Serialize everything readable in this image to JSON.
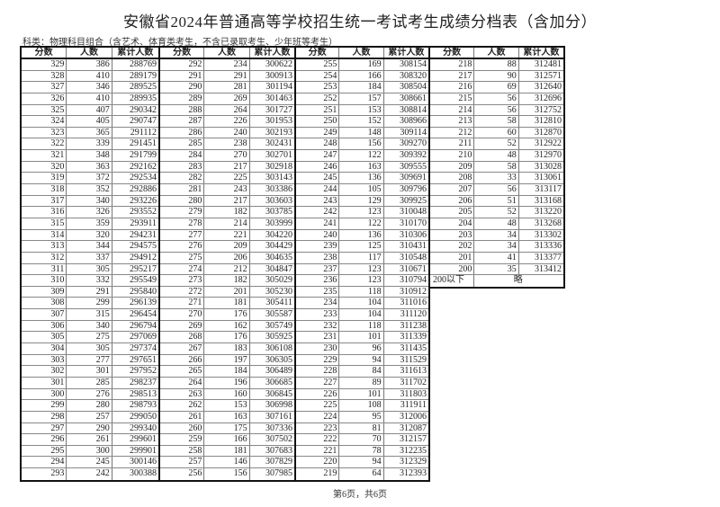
{
  "title": "安徽省2024年普通高等学校招生统一考试考生成绩分档表（含加分）",
  "subtitle": "科类：物理科目组合（含艺术、体育类考生，不含已录取考生、少年班等考生）",
  "headers": [
    "分数",
    "人数",
    "累计人数"
  ],
  "groups": [
    {
      "rows": [
        [
          "329",
          "386",
          "288769"
        ],
        [
          "328",
          "410",
          "289179"
        ],
        [
          "327",
          "346",
          "289525"
        ],
        [
          "326",
          "410",
          "289935"
        ],
        [
          "325",
          "407",
          "290342"
        ],
        [
          "324",
          "405",
          "290747"
        ],
        [
          "323",
          "365",
          "291112"
        ],
        [
          "322",
          "339",
          "291451"
        ],
        [
          "321",
          "348",
          "291799"
        ],
        [
          "320",
          "363",
          "292162"
        ],
        [
          "319",
          "372",
          "292534"
        ],
        [
          "318",
          "352",
          "292886"
        ],
        [
          "317",
          "340",
          "293226"
        ],
        [
          "316",
          "326",
          "293552"
        ],
        [
          "315",
          "359",
          "293911"
        ],
        [
          "314",
          "320",
          "294231"
        ],
        [
          "313",
          "344",
          "294575"
        ],
        [
          "312",
          "337",
          "294912"
        ],
        [
          "311",
          "305",
          "295217"
        ],
        [
          "310",
          "332",
          "295549"
        ],
        [
          "309",
          "291",
          "295840"
        ],
        [
          "308",
          "299",
          "296139"
        ],
        [
          "307",
          "315",
          "296454"
        ],
        [
          "306",
          "340",
          "296794"
        ],
        [
          "305",
          "275",
          "297069"
        ],
        [
          "304",
          "305",
          "297374"
        ],
        [
          "303",
          "277",
          "297651"
        ],
        [
          "302",
          "301",
          "297952"
        ],
        [
          "301",
          "285",
          "298237"
        ],
        [
          "300",
          "276",
          "298513"
        ],
        [
          "299",
          "280",
          "298793"
        ],
        [
          "298",
          "257",
          "299050"
        ],
        [
          "297",
          "290",
          "299340"
        ],
        [
          "296",
          "261",
          "299601"
        ],
        [
          "295",
          "300",
          "299901"
        ],
        [
          "294",
          "245",
          "300146"
        ],
        [
          "293",
          "242",
          "300388"
        ]
      ]
    },
    {
      "rows": [
        [
          "292",
          "234",
          "300622"
        ],
        [
          "291",
          "291",
          "300913"
        ],
        [
          "290",
          "281",
          "301194"
        ],
        [
          "289",
          "269",
          "301463"
        ],
        [
          "288",
          "264",
          "301727"
        ],
        [
          "287",
          "226",
          "301953"
        ],
        [
          "286",
          "240",
          "302193"
        ],
        [
          "285",
          "238",
          "302431"
        ],
        [
          "284",
          "270",
          "302701"
        ],
        [
          "283",
          "217",
          "302918"
        ],
        [
          "282",
          "225",
          "303143"
        ],
        [
          "281",
          "243",
          "303386"
        ],
        [
          "280",
          "217",
          "303603"
        ],
        [
          "279",
          "182",
          "303785"
        ],
        [
          "278",
          "214",
          "303999"
        ],
        [
          "277",
          "221",
          "304220"
        ],
        [
          "276",
          "209",
          "304429"
        ],
        [
          "275",
          "206",
          "304635"
        ],
        [
          "274",
          "212",
          "304847"
        ],
        [
          "273",
          "182",
          "305029"
        ],
        [
          "272",
          "201",
          "305230"
        ],
        [
          "271",
          "181",
          "305411"
        ],
        [
          "270",
          "176",
          "305587"
        ],
        [
          "269",
          "162",
          "305749"
        ],
        [
          "268",
          "176",
          "305925"
        ],
        [
          "267",
          "183",
          "306108"
        ],
        [
          "266",
          "197",
          "306305"
        ],
        [
          "265",
          "184",
          "306489"
        ],
        [
          "264",
          "196",
          "306685"
        ],
        [
          "263",
          "160",
          "306845"
        ],
        [
          "262",
          "153",
          "306998"
        ],
        [
          "261",
          "163",
          "307161"
        ],
        [
          "260",
          "175",
          "307336"
        ],
        [
          "259",
          "166",
          "307502"
        ],
        [
          "258",
          "181",
          "307683"
        ],
        [
          "257",
          "146",
          "307829"
        ],
        [
          "256",
          "156",
          "307985"
        ]
      ]
    },
    {
      "rows": [
        [
          "255",
          "169",
          "308154"
        ],
        [
          "254",
          "166",
          "308320"
        ],
        [
          "253",
          "184",
          "308504"
        ],
        [
          "252",
          "157",
          "308661"
        ],
        [
          "251",
          "153",
          "308814"
        ],
        [
          "250",
          "152",
          "308966"
        ],
        [
          "249",
          "148",
          "309114"
        ],
        [
          "248",
          "156",
          "309270"
        ],
        [
          "247",
          "122",
          "309392"
        ],
        [
          "246",
          "163",
          "309555"
        ],
        [
          "245",
          "136",
          "309691"
        ],
        [
          "244",
          "105",
          "309796"
        ],
        [
          "243",
          "129",
          "309925"
        ],
        [
          "242",
          "123",
          "310048"
        ],
        [
          "241",
          "122",
          "310170"
        ],
        [
          "240",
          "136",
          "310306"
        ],
        [
          "239",
          "125",
          "310431"
        ],
        [
          "238",
          "117",
          "310548"
        ],
        [
          "237",
          "123",
          "310671"
        ],
        [
          "236",
          "123",
          "310794"
        ],
        [
          "235",
          "118",
          "310912"
        ],
        [
          "234",
          "104",
          "311016"
        ],
        [
          "233",
          "104",
          "311120"
        ],
        [
          "232",
          "118",
          "311238"
        ],
        [
          "231",
          "101",
          "311339"
        ],
        [
          "230",
          "96",
          "311435"
        ],
        [
          "229",
          "94",
          "311529"
        ],
        [
          "228",
          "84",
          "311613"
        ],
        [
          "227",
          "89",
          "311702"
        ],
        [
          "226",
          "101",
          "311803"
        ],
        [
          "225",
          "108",
          "311911"
        ],
        [
          "224",
          "95",
          "312006"
        ],
        [
          "223",
          "81",
          "312087"
        ],
        [
          "222",
          "70",
          "312157"
        ],
        [
          "221",
          "78",
          "312235"
        ],
        [
          "220",
          "94",
          "312329"
        ],
        [
          "219",
          "64",
          "312393"
        ]
      ]
    },
    {
      "rows": [
        [
          "218",
          "88",
          "312481"
        ],
        [
          "217",
          "90",
          "312571"
        ],
        [
          "216",
          "69",
          "312640"
        ],
        [
          "215",
          "56",
          "312696"
        ],
        [
          "214",
          "56",
          "312752"
        ],
        [
          "213",
          "58",
          "312810"
        ],
        [
          "212",
          "60",
          "312870"
        ],
        [
          "211",
          "52",
          "312922"
        ],
        [
          "210",
          "48",
          "312970"
        ],
        [
          "209",
          "58",
          "313028"
        ],
        [
          "208",
          "33",
          "313061"
        ],
        [
          "207",
          "56",
          "313117"
        ],
        [
          "206",
          "51",
          "313168"
        ],
        [
          "205",
          "52",
          "313220"
        ],
        [
          "204",
          "48",
          "313268"
        ],
        [
          "203",
          "34",
          "313302"
        ],
        [
          "202",
          "34",
          "313336"
        ],
        [
          "201",
          "41",
          "313377"
        ],
        [
          "200",
          "35",
          "313412"
        ]
      ],
      "below": {
        "label": "200以下",
        "value": "略"
      }
    }
  ],
  "footer": "第6页，共6页"
}
